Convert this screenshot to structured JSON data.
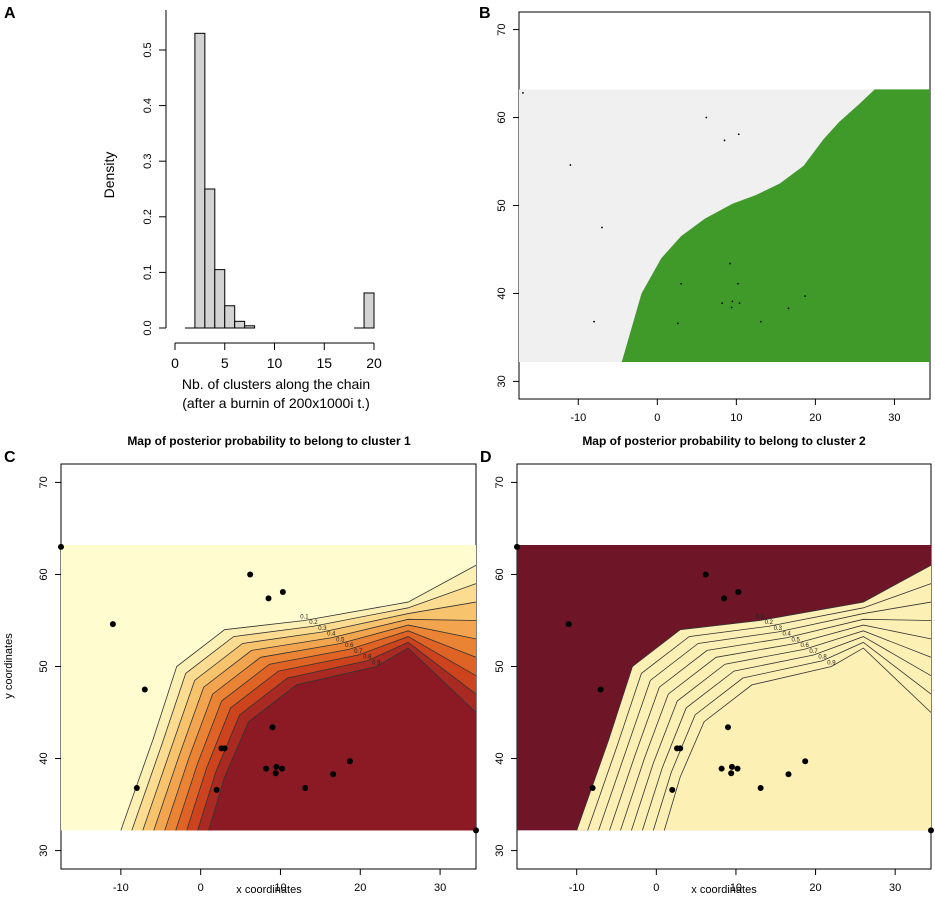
{
  "panel_labels": [
    "A",
    "B",
    "C",
    "D"
  ],
  "colors": {
    "hist_fill": "#d3d3d3",
    "sample_fill": "#f0f0f0",
    "cluster_fill": "#3f9a2a",
    "prob_ramp": [
      "#fffccf",
      "#fdf0b4",
      "#fbdc91",
      "#f8c36d",
      "#f2a44e",
      "#ea8434",
      "#e06326",
      "#cc431e",
      "#a82a22",
      "#8b1a24",
      "#6f1528"
    ]
  },
  "chart_data": [
    {
      "type": "bar",
      "panel": "A",
      "xlabel": "Nb. of clusters along the chain",
      "xlabel2": "(after a burnin of 200x1000i t.)",
      "ylabel": "Density",
      "xlim": [
        0,
        20
      ],
      "ylim": [
        0,
        0.55
      ],
      "xticks": [
        "0",
        "5",
        "10",
        "15",
        "20"
      ],
      "yticks": [
        "0.0",
        "0.1",
        "0.2",
        "0.3",
        "0.4",
        "0.5"
      ],
      "bins": [
        [
          1,
          2
        ],
        [
          2,
          3
        ],
        [
          3,
          4
        ],
        [
          4,
          5
        ],
        [
          5,
          6
        ],
        [
          6,
          7
        ],
        [
          7,
          8
        ],
        [
          18,
          19
        ],
        [
          19,
          20
        ]
      ],
      "values": [
        0.0,
        0.53,
        0.25,
        0.105,
        0.04,
        0.012,
        0.004,
        0.0,
        0.063
      ]
    },
    {
      "type": "scatter",
      "panel": "B",
      "xlim": [
        -17.5,
        34.5
      ],
      "ylim": [
        28,
        72
      ],
      "xticks": [
        "-10",
        "0",
        "10",
        "20",
        "30"
      ],
      "yticks": [
        "30",
        "40",
        "50",
        "60",
        "70"
      ],
      "domain": {
        "x": [
          -17.5,
          34.5
        ],
        "y": [
          32.2,
          63.2
        ]
      },
      "boundary": [
        [
          -4.5,
          32.2
        ],
        [
          -2,
          40
        ],
        [
          0.5,
          44
        ],
        [
          3,
          46.5
        ],
        [
          6,
          48.5
        ],
        [
          9.5,
          50.2
        ],
        [
          12.5,
          51.2
        ],
        [
          15.5,
          52.5
        ],
        [
          18.5,
          54.5
        ],
        [
          21,
          57.5
        ],
        [
          23,
          59.5
        ],
        [
          25.5,
          61.5
        ],
        [
          27.5,
          63.2
        ]
      ],
      "points_x": [
        -17,
        -11,
        -8,
        -7,
        6.2,
        8.5,
        10.3,
        2.6,
        3,
        9.2,
        10.2,
        8.2,
        9.4,
        9.5,
        10.4,
        13.1,
        16.6,
        18.7
      ],
      "points_y": [
        62.8,
        54.6,
        36.8,
        47.5,
        60,
        57.4,
        58.1,
        36.6,
        41.1,
        43.4,
        41.1,
        38.9,
        38.4,
        39.1,
        38.9,
        36.8,
        38.3,
        39.7
      ]
    },
    {
      "type": "heatmap",
      "panel": "C",
      "title": "Map of posterior probability to belong to cluster 1",
      "xlabel": "x coordinates",
      "ylabel": "y coordinates",
      "xlim": [
        -17.5,
        34.5
      ],
      "ylim": [
        28,
        72
      ],
      "xticks": [
        "-10",
        "0",
        "10",
        "20",
        "30"
      ],
      "yticks": [
        "30",
        "40",
        "50",
        "60",
        "70"
      ],
      "contour_levels": [
        0.1,
        0.2,
        0.3,
        0.4,
        0.5,
        0.6,
        0.7,
        0.8,
        0.9
      ],
      "contour_labels": [
        "0.1",
        "0.2",
        "0.3",
        "0.4",
        "0.5",
        "0.6",
        "0.7",
        "0.8",
        "0.9"
      ],
      "points_x": [
        -17.5,
        -11,
        -8,
        -7,
        6.2,
        8.5,
        10.3,
        2,
        2.6,
        3,
        8.2,
        9,
        9.4,
        9.5,
        10.2,
        13.1,
        16.6,
        18.7,
        34.5
      ],
      "points_y": [
        63,
        54.6,
        36.8,
        47.5,
        60,
        57.4,
        58.1,
        36.6,
        41.1,
        41.1,
        38.9,
        43.4,
        38.4,
        39.1,
        38.9,
        36.8,
        38.3,
        39.7,
        32.2
      ]
    },
    {
      "type": "heatmap",
      "panel": "D",
      "title": "Map of posterior probability to belong to cluster  2",
      "xlabel": "x coordinates",
      "ylabel": "",
      "xlim": [
        -17.5,
        34.5
      ],
      "ylim": [
        28,
        72
      ],
      "xticks": [
        "-10",
        "0",
        "10",
        "20",
        "30"
      ],
      "yticks": [
        "30",
        "40",
        "50",
        "60",
        "70"
      ],
      "contour_levels": [
        0.1,
        0.2,
        0.3,
        0.4,
        0.5,
        0.6,
        0.7,
        0.8,
        0.9
      ],
      "contour_labels": [
        "0.9",
        "0.8",
        "0.7",
        "0.6",
        "0.5",
        "0.4",
        "0.3",
        "0.2",
        "0.1"
      ],
      "points_x": [
        -17.5,
        -11,
        -8,
        -7,
        6.2,
        8.5,
        10.3,
        2,
        2.6,
        3,
        8.2,
        9,
        9.4,
        9.5,
        10.2,
        13.1,
        16.6,
        18.7,
        34.5
      ],
      "points_y": [
        63,
        54.6,
        36.8,
        47.5,
        60,
        57.4,
        58.1,
        36.6,
        41.1,
        41.1,
        38.9,
        43.4,
        38.4,
        39.1,
        38.9,
        36.8,
        38.3,
        39.7,
        32.2
      ]
    }
  ]
}
